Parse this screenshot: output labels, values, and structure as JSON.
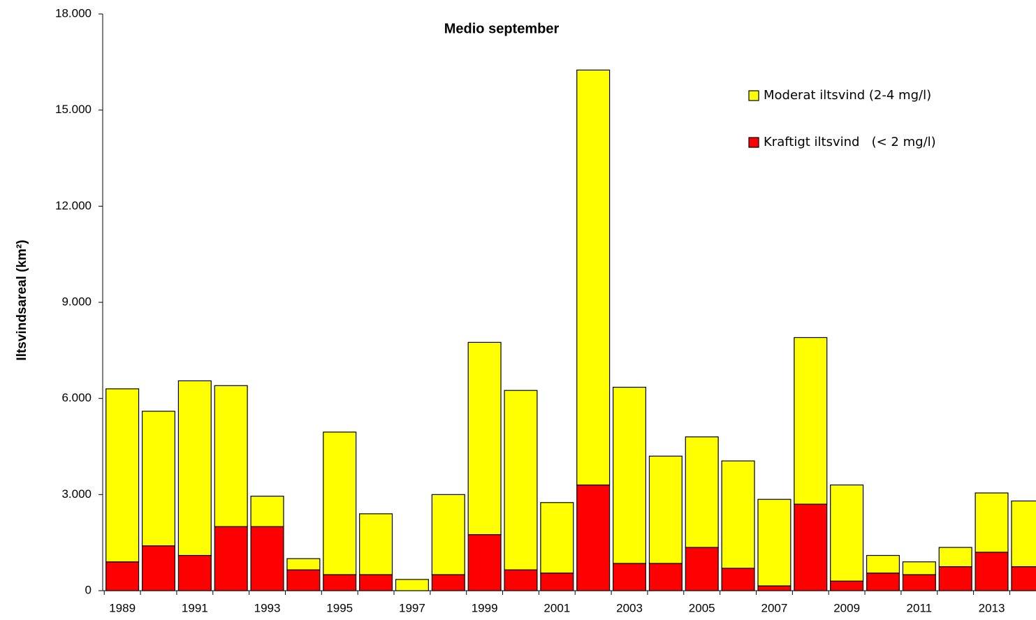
{
  "chart_data": {
    "type": "stacked_bar",
    "title": "Medio september",
    "y_label": "Iltsvindsareal (km²)",
    "categories": [
      "1989",
      null,
      "1991",
      null,
      "1993",
      null,
      "1995",
      null,
      "1997",
      null,
      "1999",
      null,
      "2001",
      null,
      "2003",
      null,
      "2005",
      null,
      "2007",
      null,
      "2009",
      null,
      "2011",
      null,
      "2013",
      null
    ],
    "series": [
      {
        "name": "Kraftigt iltsvind   (< 2 mg/l)",
        "color": "#ff0000",
        "values": [
          900,
          1400,
          1100,
          2000,
          2000,
          650,
          500,
          500,
          0,
          500,
          1750,
          650,
          550,
          3300,
          850,
          850,
          1350,
          700,
          150,
          2700,
          300,
          550,
          500,
          750,
          1200,
          750
        ]
      },
      {
        "name": "Moderat iltsvind (2-4 mg/l)",
        "color": "#ffff00",
        "values": [
          5400,
          4200,
          5450,
          4400,
          950,
          350,
          4450,
          1900,
          350,
          2500,
          6000,
          5600,
          2200,
          12950,
          5500,
          3350,
          3450,
          3350,
          2700,
          5200,
          3000,
          550,
          400,
          600,
          1850,
          2050
        ]
      }
    ],
    "ylim": [
      0,
      18000
    ],
    "yticks": [
      0,
      {
        "value": 3000,
        "label": "3.000"
      },
      {
        "value": 6000,
        "label": "6.000"
      },
      {
        "value": 9000,
        "label": "9.000"
      },
      {
        "value": 12000,
        "label": "12.000"
      },
      {
        "value": 15000,
        "label": "15.000"
      },
      {
        "value": 18000,
        "label": "18.000"
      }
    ],
    "grid": false,
    "legend": "upper right"
  }
}
